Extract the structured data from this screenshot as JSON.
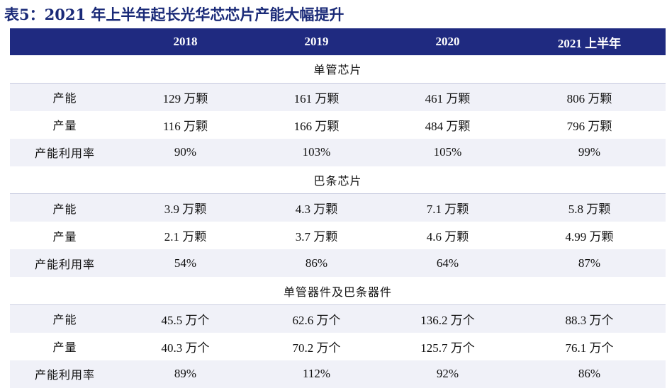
{
  "title": "表5：2021 年上半年起长光华芯芯片产能大幅提升",
  "header": {
    "blank": "",
    "columns": [
      "2018",
      "2019",
      "2020",
      "2021 上半年"
    ]
  },
  "sections": [
    {
      "name": "单管芯片",
      "rows": [
        {
          "label": "产能",
          "values": [
            "129 万颗",
            "161 万颗",
            "461 万颗",
            "806 万颗"
          ]
        },
        {
          "label": "产量",
          "values": [
            "116 万颗",
            "166 万颗",
            "484 万颗",
            "796 万颗"
          ]
        },
        {
          "label": "产能利用率",
          "values": [
            "90%",
            "103%",
            "105%",
            "99%"
          ]
        }
      ]
    },
    {
      "name": "巴条芯片",
      "rows": [
        {
          "label": "产能",
          "values": [
            "3.9 万颗",
            "4.3 万颗",
            "7.1 万颗",
            "5.8 万颗"
          ]
        },
        {
          "label": "产量",
          "values": [
            "2.1 万颗",
            "3.7 万颗",
            "4.6 万颗",
            "4.99 万颗"
          ]
        },
        {
          "label": "产能利用率",
          "values": [
            "54%",
            "86%",
            "64%",
            "87%"
          ]
        }
      ]
    },
    {
      "name": "单管器件及巴条器件",
      "rows": [
        {
          "label": "产能",
          "values": [
            "45.5 万个",
            "62.6 万个",
            "136.2 万个",
            "88.3 万个"
          ]
        },
        {
          "label": "产量",
          "values": [
            "40.3 万个",
            "70.2 万个",
            "125.7 万个",
            "76.1 万个"
          ]
        },
        {
          "label": "产能利用率",
          "values": [
            "89%",
            "112%",
            "92%",
            "86%"
          ]
        }
      ]
    }
  ]
}
